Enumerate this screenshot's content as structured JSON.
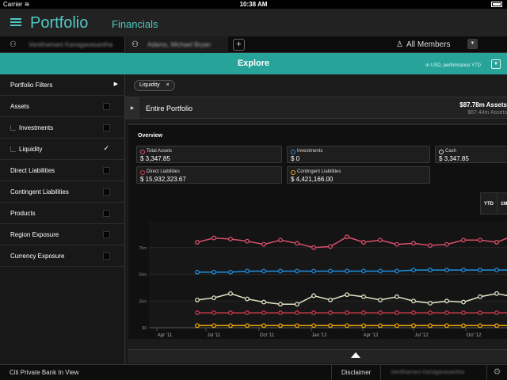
{
  "status_bar": {
    "carrier": "Carrier",
    "wifi_icon": "wifi-icon",
    "time": "10:38 AM",
    "battery_icon": "battery-icon"
  },
  "app": {
    "title": "Portfolio",
    "subtitle": "Financials",
    "menu_icon": "hamburger-icon"
  },
  "tabs": {
    "tab1_name": "Vanithamani Kanagavasantha",
    "tab2_name": "Adams, Michael Bryan",
    "add_label": "+",
    "members_label": "All Members",
    "members_icon": "people-icon"
  },
  "explore": {
    "title": "Explore",
    "currency_label": "in USD, performance YTD"
  },
  "sidebar": {
    "items": [
      {
        "label": "Portfolio Filters",
        "kind": "header"
      },
      {
        "label": "Assets",
        "kind": "checkbox",
        "checked": false
      },
      {
        "label": "Investments",
        "kind": "child",
        "checked": false
      },
      {
        "label": "Liquidity",
        "kind": "child",
        "checked": true
      },
      {
        "label": "Direct Liabilities",
        "kind": "checkbox",
        "checked": false
      },
      {
        "label": "Contingent Liabilities",
        "kind": "checkbox",
        "checked": false
      },
      {
        "label": "Products",
        "kind": "checkbox",
        "checked": false
      },
      {
        "label": "Region Exposure",
        "kind": "checkbox",
        "checked": false
      },
      {
        "label": "Currency Exposure",
        "kind": "checkbox",
        "checked": false
      }
    ],
    "check_mark": "✓",
    "arrow": "▶"
  },
  "filter_chip": {
    "label": "Liquidity",
    "close": "×"
  },
  "portfolio": {
    "title": "Entire Portfolio",
    "value": "$87.78m Assets",
    "prev_value": "$67.44m Assets"
  },
  "overview": {
    "title": "Overview",
    "cards": [
      {
        "label": "Total Assets",
        "value": "$ 3,347.85",
        "color": "#d8506a"
      },
      {
        "label": "Investments",
        "value": "$ 0",
        "color": "#1e90e0"
      },
      {
        "label": "Cash",
        "value": "$ 3,347.85",
        "color": "#e6e4c6"
      },
      {
        "label": "Direct Liabilities",
        "value": "$ 15,932,323.67",
        "color": "#c83a4a"
      },
      {
        "label": "Contingent Liabilities",
        "value": "$ 4,421,166.00",
        "color": "#f0a800"
      }
    ],
    "period_buttons": [
      "YTD",
      "1M"
    ]
  },
  "chart_data": {
    "type": "line",
    "x_labels": [
      "Apr '11",
      "Jul '11",
      "Oct '11",
      "Jan '12",
      "Apr '12",
      "Jul '12",
      "Oct '12"
    ],
    "y_labels": [
      "$0",
      "25m",
      "50m",
      "75m"
    ],
    "ylim": [
      0,
      100
    ],
    "grid": true,
    "series": [
      {
        "name": "Total Assets",
        "color": "#d8506a",
        "values": [
          80,
          84,
          83,
          81,
          78,
          82,
          79,
          75,
          76,
          85,
          80,
          82,
          78,
          79,
          77,
          78,
          82,
          82,
          80,
          86,
          83,
          86,
          84,
          83,
          81,
          84,
          82,
          84
        ]
      },
      {
        "name": "Investments",
        "color": "#1e90e0",
        "values": [
          52,
          52,
          52,
          53,
          53,
          53,
          53,
          53,
          53,
          53,
          53,
          53,
          53,
          54,
          54,
          54,
          54,
          54,
          54,
          54,
          55,
          55,
          55,
          55,
          55,
          55,
          56,
          57
        ]
      },
      {
        "name": "Cash",
        "color": "#e6e4c6",
        "values": [
          26,
          28,
          32,
          27,
          24,
          22,
          22,
          30,
          26,
          31,
          29,
          26,
          29,
          25,
          23,
          25,
          24,
          29,
          32,
          29,
          33,
          30,
          31,
          28,
          25,
          31,
          25,
          29
        ]
      },
      {
        "name": "Direct Liabilities",
        "color": "#c83a4a",
        "values": [
          14,
          14,
          14,
          14,
          14,
          14,
          14,
          14,
          14,
          14,
          14,
          14,
          14,
          14,
          14,
          14,
          14,
          14,
          14,
          14,
          14,
          14,
          14,
          14,
          14,
          14,
          14,
          14
        ]
      },
      {
        "name": "Contingent Liabilities",
        "color": "#f0a800",
        "values": [
          2,
          2,
          2,
          2,
          2,
          2,
          2,
          2,
          2,
          2,
          2,
          2,
          2,
          2,
          2,
          2,
          2,
          2,
          2,
          2,
          2,
          2,
          2,
          2,
          2,
          2,
          2,
          2
        ]
      }
    ]
  },
  "footer": {
    "brand": "Citi Private Bank In View",
    "disclaimer": "Disclaimer",
    "user": "Vanithamani Kanagavasantha",
    "settings_icon": "gear-icon"
  }
}
